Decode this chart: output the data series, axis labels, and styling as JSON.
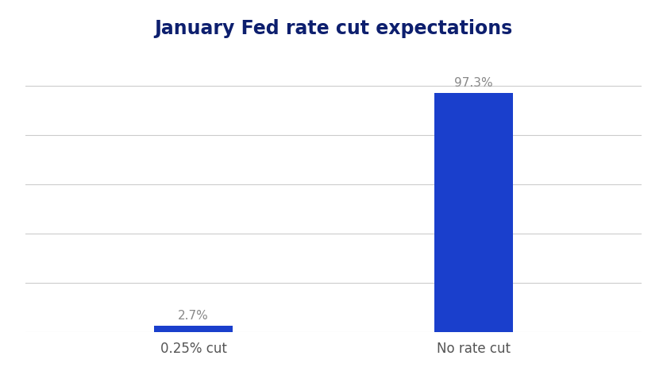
{
  "title": "January Fed rate cut expectations",
  "categories": [
    "0.25% cut",
    "No rate cut"
  ],
  "values": [
    2.7,
    97.3
  ],
  "labels": [
    "2.7%",
    "97.3%"
  ],
  "bar_color": "#1a3fcc",
  "title_color": "#0d1f6e",
  "label_color": "#888888",
  "tick_label_color": "#555555",
  "background_color": "#ffffff",
  "grid_color": "#cccccc",
  "ylim": [
    0,
    112
  ],
  "xlim": [
    -0.6,
    1.6
  ],
  "title_fontsize": 17,
  "label_fontsize": 11,
  "tick_fontsize": 12,
  "bar_width": 0.28,
  "grid_vals": [
    20,
    40,
    60,
    80,
    100
  ]
}
